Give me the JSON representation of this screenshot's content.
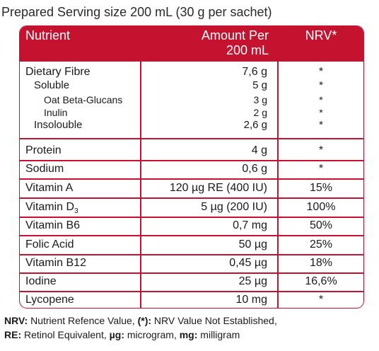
{
  "caption": "Prepared Serving size 200 mL (30 g per sachet)",
  "header": {
    "nutrient": "Nutrient",
    "amount_line1": "Amount Per",
    "amount_line2": "200 mL",
    "nrv": "NRV*"
  },
  "fibre_group": {
    "rows": [
      {
        "name": "Dietary Fibre",
        "amount": "7,6 g",
        "nrv": "*"
      },
      {
        "name": "Soluble",
        "amount": "5 g",
        "nrv": "*"
      },
      {
        "name": "Oat Beta-Glucans",
        "amount": "3 g",
        "nrv": "*"
      },
      {
        "name": "Inulin",
        "amount": "2 g",
        "nrv": "*"
      },
      {
        "name": "Insolouble",
        "amount": "2,6 g",
        "nrv": "*"
      }
    ]
  },
  "rows": [
    {
      "name": "Protein",
      "amount": "4 g",
      "nrv": "*"
    },
    {
      "name": "Sodium",
      "amount": "0,6 g",
      "nrv": "*"
    },
    {
      "name": "Vitamin A",
      "amount": "120 µg RE (400 IU)",
      "nrv": "15%"
    },
    {
      "name": "Vitamin D",
      "sub": "3",
      "amount": "5 µg (200 IU)",
      "nrv": "100%"
    },
    {
      "name": "Vitamin B6",
      "amount": "0,7 mg",
      "nrv": "50%"
    },
    {
      "name": "Folic Acid",
      "amount": "50 µg",
      "nrv": "25%"
    },
    {
      "name": "Vitamin B12",
      "amount": "0,45 µg",
      "nrv": "18%"
    },
    {
      "name": "Iodine",
      "amount": "25 µg",
      "nrv": "16,6%"
    },
    {
      "name": "Lycopene",
      "amount": "10 mg",
      "nrv": "*"
    }
  ],
  "footnotes": {
    "line1": {
      "k1": "NRV:",
      "t1": " Nutrient Refence Value, ",
      "k2": "(*):",
      "t2": " NRV Value Not Established,"
    },
    "line2": {
      "k1": "RE:",
      "t1": " Retinol Equivalent, ",
      "k2": "µg:",
      "t2": " microgram, ",
      "k3": "mg:",
      "t3": " milligram"
    }
  },
  "colors": {
    "accent": "#c4122f",
    "text": "#1a1a1a",
    "header_text": "#ffffff"
  }
}
